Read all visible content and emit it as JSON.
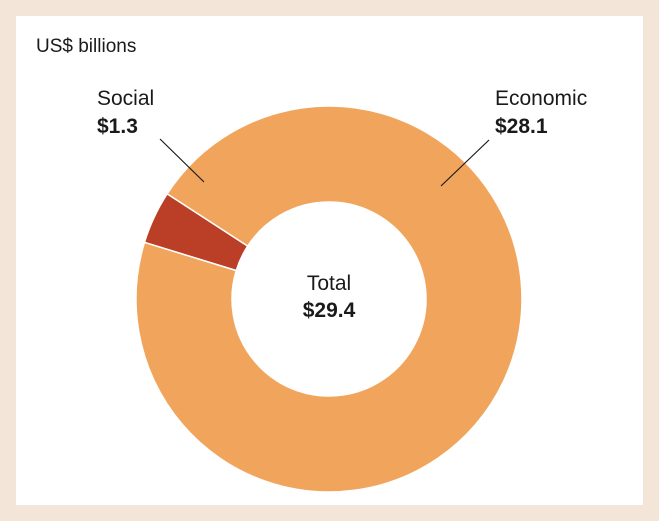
{
  "chart_data": {
    "type": "pie",
    "donut": true,
    "unit_label": "US$ billions",
    "slices": [
      {
        "name": "Economic",
        "value": 28.1,
        "value_label": "$28.1",
        "color": "#f1a55c"
      },
      {
        "name": "Social",
        "value": 1.3,
        "value_label": "$1.3",
        "color": "#bb3f26"
      }
    ],
    "center": {
      "label": "Total",
      "value_label": "$29.4"
    }
  }
}
